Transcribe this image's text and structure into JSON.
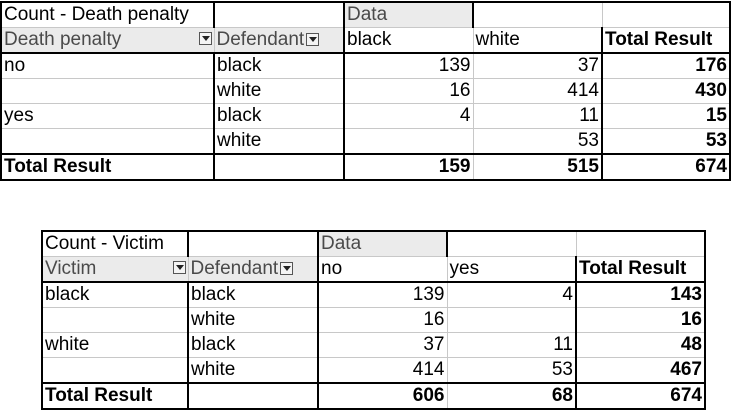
{
  "pivot1": {
    "title": "Count - Death penalty",
    "data_label": "Data",
    "row_field": "Death penalty",
    "col_field": "Defendant",
    "col_headers": [
      "black",
      "white"
    ],
    "total_label": "Total Result",
    "rows": [
      {
        "group": "no",
        "sub": "black",
        "c1": "139",
        "c2": "37",
        "total": "176"
      },
      {
        "group": "",
        "sub": "white",
        "c1": "16",
        "c2": "414",
        "total": "430"
      },
      {
        "group": "yes",
        "sub": "black",
        "c1": "4",
        "c2": "11",
        "total": "15"
      },
      {
        "group": "",
        "sub": "white",
        "c1": "",
        "c2": "53",
        "total": "53"
      }
    ],
    "grand": {
      "label": "Total Result",
      "c1": "159",
      "c2": "515",
      "total": "674"
    }
  },
  "pivot2": {
    "title": "Count - Victim",
    "data_label": "Data",
    "row_field": "Victim",
    "col_field": "Defendant",
    "col_headers": [
      "no",
      "yes"
    ],
    "total_label": "Total Result",
    "rows": [
      {
        "group": "black",
        "sub": "black",
        "c1": "139",
        "c2": "4",
        "total": "143"
      },
      {
        "group": "",
        "sub": "white",
        "c1": "16",
        "c2": "",
        "total": "16"
      },
      {
        "group": "white",
        "sub": "black",
        "c1": "37",
        "c2": "11",
        "total": "48"
      },
      {
        "group": "",
        "sub": "white",
        "c1": "414",
        "c2": "53",
        "total": "467"
      }
    ],
    "grand": {
      "label": "Total Result",
      "c1": "606",
      "c2": "68",
      "total": "674"
    }
  }
}
